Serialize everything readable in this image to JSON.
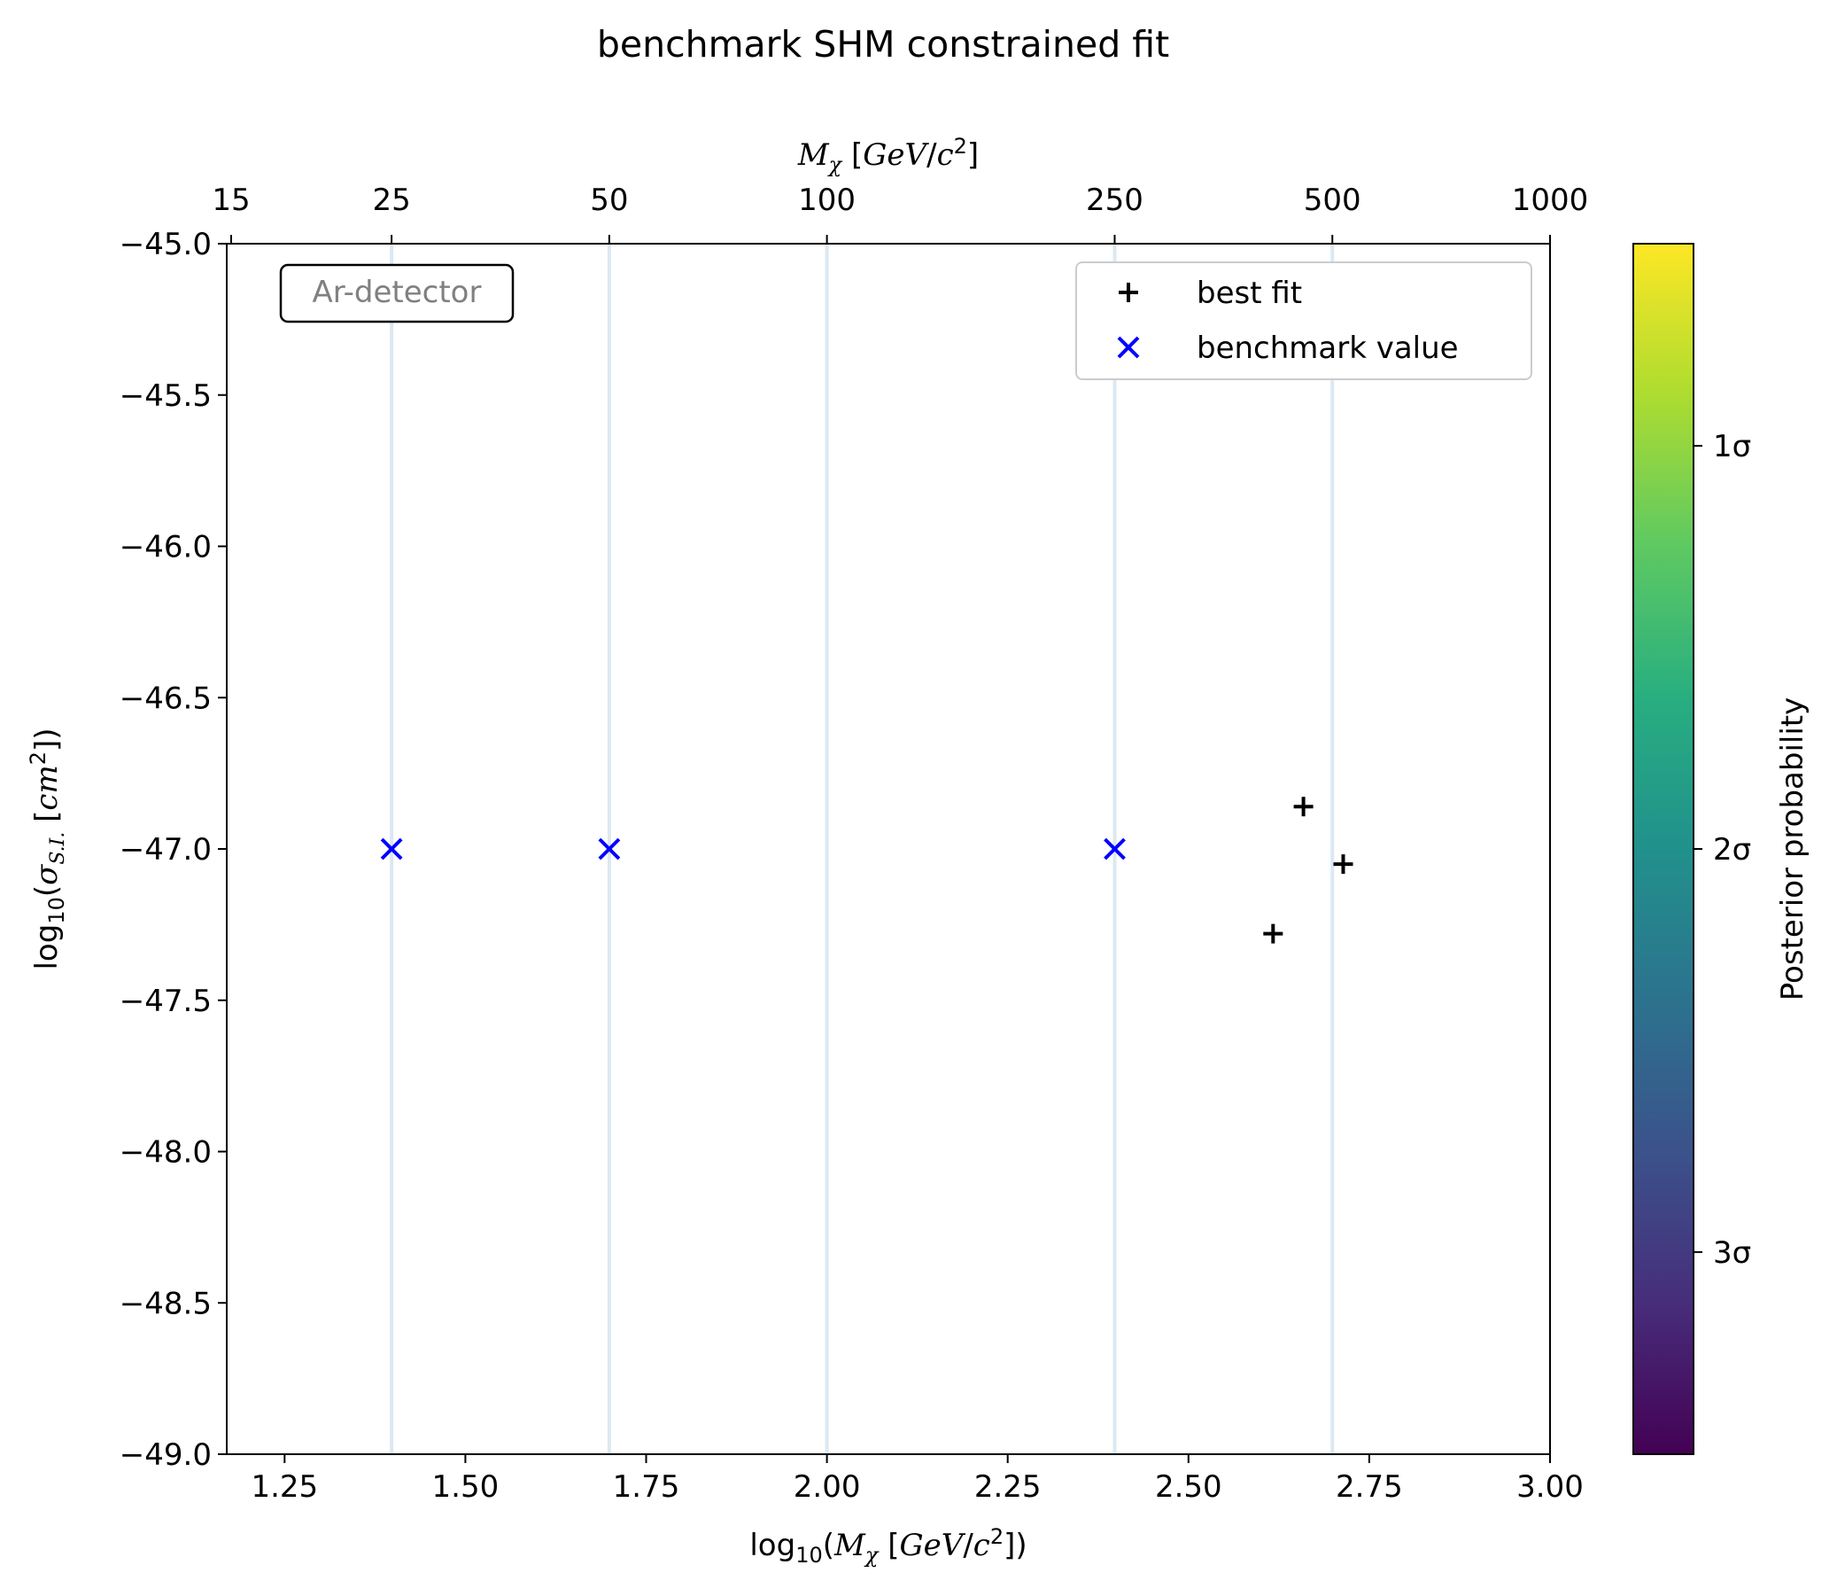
{
  "chart_data": {
    "type": "scatter",
    "title": "benchmark SHM constrained fit",
    "xlabel": "log₁₀(Mχ [GeV/c²])",
    "ylabel": "log₁₀(σS.I. [cm²])",
    "xlim": [
      1.17,
      3.0
    ],
    "ylim": [
      -49.0,
      -45.0
    ],
    "x_ticks": [
      1.25,
      1.5,
      1.75,
      2.0,
      2.25,
      2.5,
      2.75,
      3.0
    ],
    "x_tick_labels": [
      "1.25",
      "1.50",
      "1.75",
      "2.00",
      "2.25",
      "2.50",
      "2.75",
      "3.00"
    ],
    "y_ticks": [
      -45.0,
      -45.5,
      -46.0,
      -46.5,
      -47.0,
      -47.5,
      -48.0,
      -48.5,
      -49.0
    ],
    "y_tick_labels": [
      "−45.0",
      "−45.5",
      "−46.0",
      "−46.5",
      "−47.0",
      "−47.5",
      "−48.0",
      "−48.5",
      "−49.0"
    ],
    "top_axis": {
      "label": "Mχ [GeV/c²]",
      "ticks": [
        15,
        25,
        50,
        100,
        250,
        500,
        1000
      ],
      "tick_labels": [
        "15",
        "25",
        "50",
        "100",
        "250",
        "500",
        "1000"
      ]
    },
    "vertical_lines_x": [
      1.398,
      1.699,
      2.0,
      2.398,
      2.699
    ],
    "vertical_line_color": "#dce8f3",
    "series": [
      {
        "name": "best fit",
        "marker": "plus",
        "color": "#000000",
        "points": [
          [
            2.617,
            -47.28
          ],
          [
            2.659,
            -46.86
          ],
          [
            2.714,
            -47.05
          ]
        ]
      },
      {
        "name": "benchmark value",
        "marker": "x",
        "color": "#0000ff",
        "points": [
          [
            1.398,
            -47.0
          ],
          [
            1.699,
            -47.0
          ],
          [
            2.398,
            -47.0
          ]
        ]
      }
    ],
    "legend_position": "top-right",
    "annotation": "Ar-detector",
    "annotation_color": "#808080",
    "colorbar": {
      "label": "Posterior probability",
      "colormap": "viridis",
      "ticks": [
        "1σ",
        "2σ",
        "3σ"
      ],
      "tick_levels": [
        0.833,
        0.5,
        0.167
      ]
    },
    "grid": false
  }
}
